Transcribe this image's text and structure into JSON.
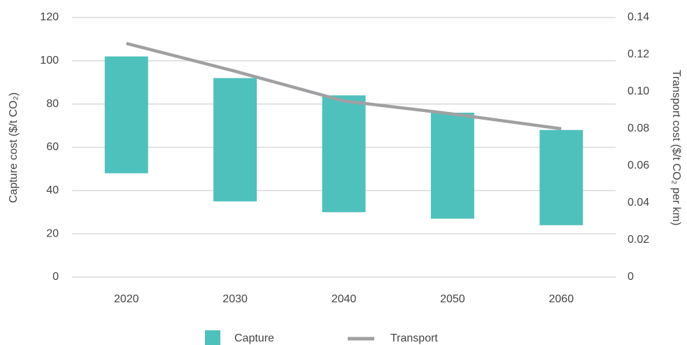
{
  "chart_data": {
    "type": "range-bar-line",
    "categories": [
      "2020",
      "2030",
      "2040",
      "2050",
      "2060"
    ],
    "ylabel": "Capture cost ($/t CO₂)",
    "y2label": "Transport cost ($/t CO₂ per km)",
    "ylim": [
      0,
      120
    ],
    "yticks": [
      0,
      20,
      40,
      60,
      80,
      100,
      120
    ],
    "y2lim": [
      0,
      0.14
    ],
    "y2ticks": [
      0,
      0.02,
      0.04,
      0.06,
      0.08,
      {
        "value": 0.1,
        "label": "0.10"
      },
      0.12,
      0.14
    ],
    "grid": true,
    "legend": "bottom",
    "series": [
      {
        "name": "Capture",
        "color": "#4fc1bc",
        "type": "range-bar",
        "low": [
          48,
          35,
          30,
          27,
          24
        ],
        "high": [
          102,
          92,
          84,
          76,
          68
        ]
      },
      {
        "name": "Transport",
        "color": "#a0a0a3",
        "type": "line",
        "axis": "y2",
        "values": [
          0.126,
          0.111,
          0.095,
          0.088,
          0.08
        ]
      }
    ]
  }
}
